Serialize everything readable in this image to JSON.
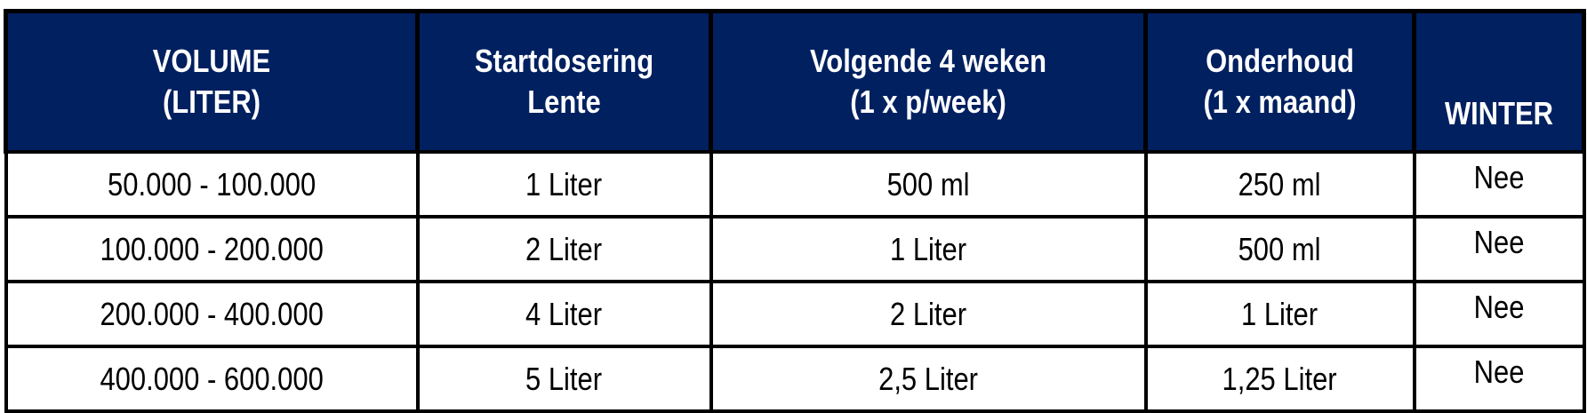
{
  "header_color": "#002060",
  "columns": [
    {
      "line1": "VOLUME",
      "line2": "(LITER)"
    },
    {
      "line1": "Startdosering",
      "line2": "Lente"
    },
    {
      "line1": "Volgende 4 weken",
      "line2": "(1 x p/week)"
    },
    {
      "line1": "Onderhoud",
      "line2": "(1 x maand)"
    },
    {
      "line1": "WINTER",
      "line2": ""
    }
  ],
  "rows": [
    [
      "50.000 - 100.000",
      "1 Liter",
      "500 ml",
      "250 ml",
      "Nee"
    ],
    [
      "100.000 - 200.000",
      "2 Liter",
      "1 Liter",
      "500 ml",
      "Nee"
    ],
    [
      "200.000 - 400.000",
      "4 Liter",
      "2 Liter",
      "1 Liter",
      "Nee"
    ],
    [
      "400.000 - 600.000",
      "5 Liter",
      "2,5 Liter",
      "1,25 Liter",
      "Nee"
    ]
  ]
}
